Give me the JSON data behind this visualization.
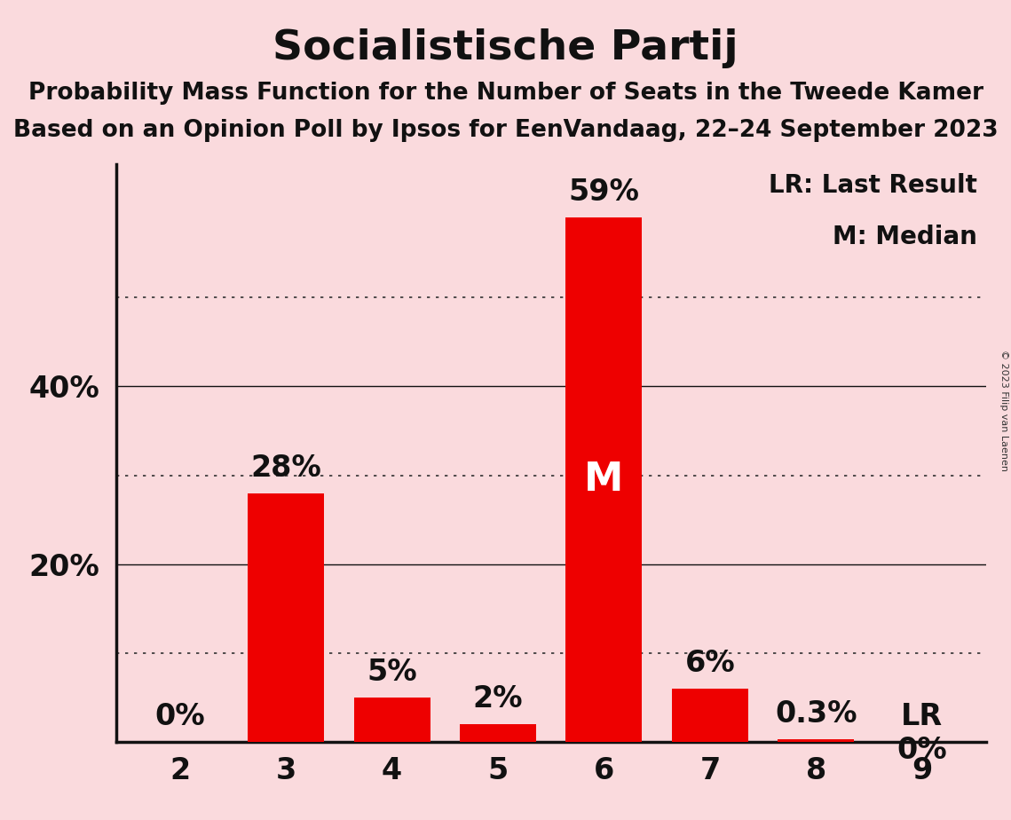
{
  "title": "Socialistische Partij",
  "subtitle1": "Probability Mass Function for the Number of Seats in the Tweede Kamer",
  "subtitle2": "Based on an Opinion Poll by Ipsos for EenVandaag, 22–24 September 2023",
  "copyright": "© 2023 Filip van Laenen",
  "categories": [
    2,
    3,
    4,
    5,
    6,
    7,
    8,
    9
  ],
  "values": [
    0.0,
    28.0,
    5.0,
    2.0,
    59.0,
    6.0,
    0.3,
    0.0
  ],
  "bar_labels": [
    "0%",
    "28%",
    "5%",
    "2%",
    "59%",
    "6%",
    "0.3%",
    "0%"
  ],
  "bar_color": "#EE0000",
  "background_color": "#FADADD",
  "median_seat": 6,
  "last_result_seat": 9,
  "yticks": [
    20,
    40
  ],
  "ygridlines_dotted": [
    10,
    30,
    50
  ],
  "ygridlines_solid": [
    20,
    40
  ],
  "ylim": [
    0,
    65
  ],
  "title_fontsize": 34,
  "subtitle_fontsize": 19,
  "tick_fontsize": 24,
  "bar_label_fontsize": 24,
  "legend_fontsize": 20,
  "median_label_fontsize": 32,
  "legend_text": [
    "LR: Last Result",
    "M: Median"
  ],
  "copyright_fontsize": 8
}
